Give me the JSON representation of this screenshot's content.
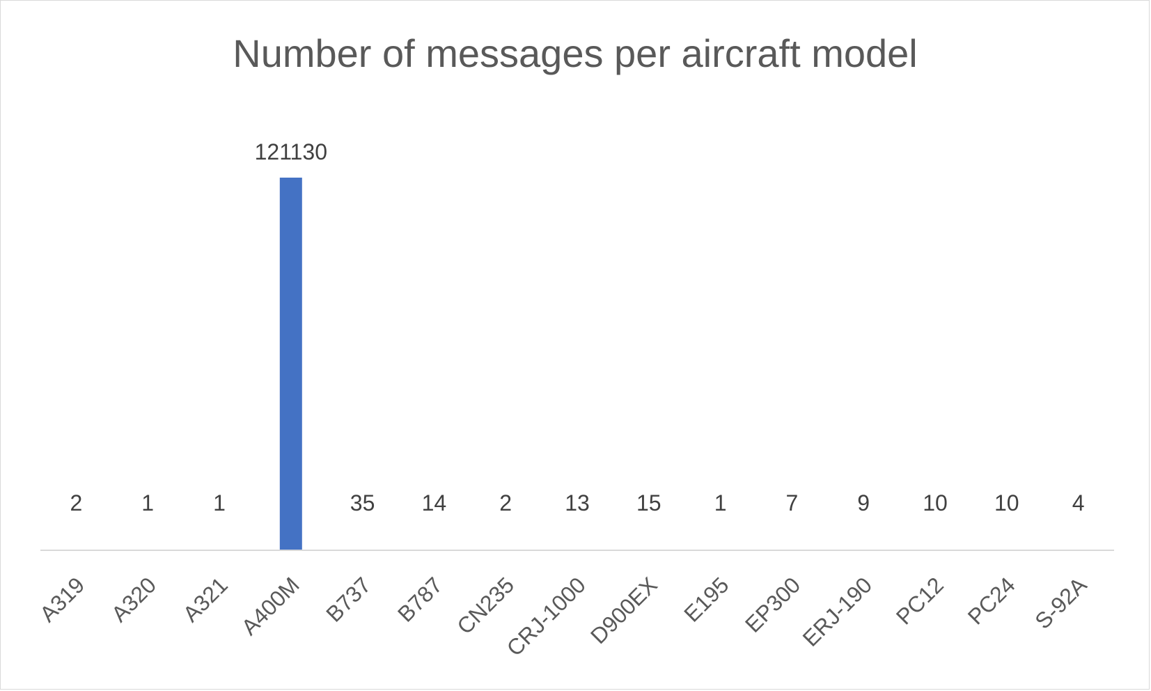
{
  "chart_data": {
    "type": "bar",
    "title": "Number of messages per aircraft model",
    "xlabel": "",
    "ylabel": "",
    "categories": [
      "A319",
      "A320",
      "A321",
      "A400M",
      "B737",
      "B787",
      "CN235",
      "CRJ-1000",
      "D900EX",
      "E195",
      "EP300",
      "ERJ-190",
      "PC12",
      "PC24",
      "S-92A"
    ],
    "values": [
      2,
      1,
      1,
      121130,
      35,
      14,
      2,
      13,
      15,
      1,
      7,
      9,
      10,
      10,
      4
    ],
    "data_labels": [
      "2",
      "1",
      "1",
      "121130",
      "35",
      "14",
      "2",
      "13",
      "15",
      "1",
      "7",
      "9",
      "10",
      "10",
      "4"
    ],
    "ylim": [
      0,
      121130
    ],
    "grid": false,
    "legend": "none",
    "colors": {
      "bar": "#4472C4",
      "axis": "#d9d9d9",
      "title": "#595959",
      "data_label": "#404040",
      "tick_label": "#595959"
    }
  }
}
